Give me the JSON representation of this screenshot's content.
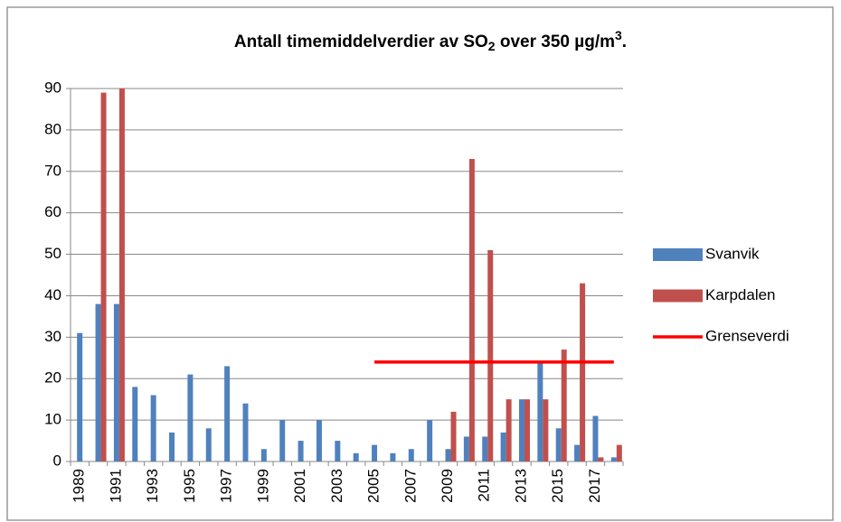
{
  "chart_data": {
    "type": "bar",
    "title": {
      "main": "Antall timemiddelverdier av SO",
      "sub": "2",
      "middle": " over 350 µg/m",
      "sup": "3",
      "end": "."
    },
    "categories": [
      "1989",
      null,
      "1991",
      null,
      "1993",
      null,
      "1995",
      null,
      "1997",
      null,
      "1999",
      null,
      "2001",
      null,
      "2003",
      null,
      "2005",
      null,
      "2007",
      null,
      "2009",
      null,
      "2011",
      null,
      "2013",
      null,
      "2015",
      null,
      "2017",
      null
    ],
    "series": [
      {
        "name": "Svanvik",
        "color": "#4f81bd",
        "type": "bar",
        "values": [
          31,
          38,
          38,
          18,
          16,
          7,
          21,
          8,
          23,
          14,
          3,
          10,
          5,
          10,
          5,
          2,
          4,
          2,
          3,
          10,
          3,
          6,
          6,
          7,
          15,
          24,
          8,
          4,
          11,
          1
        ]
      },
      {
        "name": "Karpdalen",
        "color": "#c0504d",
        "type": "bar",
        "values": [
          null,
          89,
          90,
          null,
          null,
          null,
          null,
          null,
          null,
          null,
          null,
          null,
          null,
          null,
          null,
          null,
          null,
          null,
          null,
          null,
          12,
          73,
          51,
          15,
          15,
          15,
          27,
          43,
          1,
          4
        ]
      },
      {
        "name": "Grenseverdi",
        "color": "#ff0000",
        "type": "line",
        "values": [
          null,
          null,
          null,
          null,
          null,
          null,
          null,
          null,
          null,
          null,
          null,
          null,
          null,
          null,
          null,
          null,
          24,
          24,
          24,
          24,
          24,
          24,
          24,
          24,
          24,
          24,
          24,
          24,
          24,
          24
        ]
      }
    ],
    "ylim": [
      0,
      90
    ],
    "yticks": [
      0,
      10,
      20,
      30,
      40,
      50,
      60,
      70,
      80,
      90
    ],
    "grid": true,
    "legend": "right"
  }
}
